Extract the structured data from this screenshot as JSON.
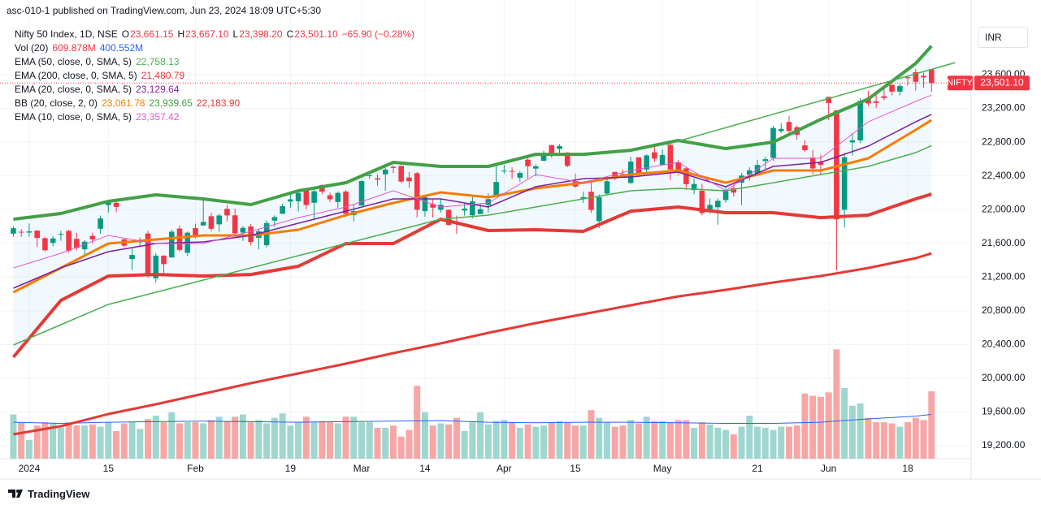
{
  "header": {
    "publisher": "asc-010-1 published on TradingView.com, Jun 23, 2024 18:09 UTC+5:30",
    "brand": "TradingView",
    "currency": "INR"
  },
  "chart_data": {
    "type": "candlestick",
    "title": "Nifty 50 Index, 1D, NSE",
    "ohlc_labels": [
      {
        "key": "O",
        "value": "23,661.15"
      },
      {
        "key": "H",
        "value": "23,667.10"
      },
      {
        "key": "L",
        "value": "23,398.20"
      },
      {
        "key": "C",
        "value": "23,501.10"
      }
    ],
    "change_label": "−65.90 (−0.28%)",
    "symbol_tag": "NIFTY",
    "last_price_label": "23,501.10",
    "up_color": "#089981",
    "down_color": "#f23645",
    "open": [
      21715,
      21737,
      21727,
      21751,
      21661,
      21605,
      21705,
      21747,
      21653,
      21529,
      21688,
      21773,
      22053,
      22080,
      21647,
      21414,
      21615,
      21716,
      21185,
      21454,
      21433,
      21775,
      21487,
      21780,
      21812,
      21921,
      21825,
      22009,
      21932,
      21727,
      21800,
      21664,
      21578,
      21869,
      21950,
      22095,
      22099,
      22248,
      22081,
      22291,
      22170,
      22090,
      22214,
      21935,
      22048,
      22403,
      22372,
      22418,
      22508,
      22517,
      22380,
      22432,
      21982,
      22065,
      21998,
      21997,
      21843,
      21989,
      21932,
      21947,
      22054,
      22164,
      22455,
      22458,
      22378,
      22592,
      22486,
      22579,
      22765,
      22720,
      22677,
      22339,
      22125,
      22212,
      21862,
      22190,
      22447,
      22421,
      22316,
      22620,
      22475,
      22679,
      22531,
      22767,
      22562,
      22489,
      22231,
      22224,
      21990,
      22028,
      22113,
      22255,
      22319,
      22415,
      22405,
      22576,
      22614,
      22930,
      23039,
      22977,
      22762,
      22617,
      22568,
      23337,
      23179,
      21998,
      22798,
      22821,
      23320,
      23284,
      23344,
      23480,
      23399,
      23570,
      23629,
      23587,
      23661.15
    ],
    "high": [
      21801,
      21770,
      21834,
      21755,
      21678,
      21685,
      21749,
      21763,
      21724,
      21641,
      21726,
      21928,
      22116,
      22124,
      21652,
      21539,
      21670,
      21750,
      21482,
      21459,
      21763,
      21813,
      21742,
      21833,
      22127,
      21965,
      21951,
      22054,
      22011,
      21805,
      21831,
      21767,
      21870,
      21931,
      22069,
      22187,
      22216,
      22249,
      22253,
      22298,
      22202,
      22218,
      22229,
      22060,
      22353,
      22440,
      22417,
      22497,
      22526,
      22526,
      22447,
      22446,
      22166,
      22122,
      22123,
      22002,
      21930,
      22081,
      22180,
      22073,
      22193,
      22516,
      22529,
      22502,
      22457,
      22620,
      22537,
      22698,
      22768,
      22775,
      22680,
      22427,
      22213,
      22326,
      22180,
      22376,
      22447,
      22476,
      22625,
      22620,
      22655,
      22783,
      22711,
      22794,
      22588,
      22499,
      22369,
      22307,
      22131,
      22131,
      22270,
      22297,
      22433,
      22502,
      22591,
      22629,
      22994,
      23027,
      23111,
      22999,
      22825,
      22706,
      22653,
      23338,
      23179,
      22670,
      22910,
      23320,
      23411,
      23389,
      23442,
      23481,
      23490,
      23579,
      23665,
      23624,
      23667.1
    ],
    "low": [
      21678,
      21676,
      21680,
      21555,
      21500,
      21564,
      21629,
      21492,
      21517,
      21448,
      21593,
      21715,
      21963,
      21969,
      21550,
      21285,
      21575,
      21192,
      21137,
      21248,
      21429,
      21501,
      21449,
      21659,
      21806,
      21742,
      21737,
      21860,
      21665,
      21629,
      21575,
      21530,
      21551,
      21794,
      21950,
      22022,
      21980,
      22004,
      21875,
      22181,
      22089,
      22023,
      21915,
      21860,
      22048,
      22362,
      22283,
      22224,
      22433,
      22315,
      22257,
      21906,
      21917,
      21906,
      21963,
      21811,
      21711,
      21929,
      21896,
      21947,
      21963,
      22164,
      22428,
      22365,
      22331,
      22369,
      22396,
      22575,
      22612,
      22673,
      22503,
      22259,
      22080,
      21961,
      21778,
      22180,
      22349,
      22384,
      22305,
      22385,
      22441,
      22568,
      22528,
      22348,
      22409,
      22232,
      22185,
      21932,
      21950,
      21821,
      22082,
      22151,
      22054,
      22345,
      22404,
      22483,
      22577,
      22907,
      22871,
      22825,
      22685,
      22418,
      22417,
      23062,
      21281,
      21791,
      22642,
      22789,
      23227,
      23207,
      23295,
      23353,
      23354,
      23473,
      23412,
      23442,
      23398.2
    ],
    "close": [
      21779,
      21731,
      21742,
      21665,
      21518,
      21658,
      21711,
      21513,
      21545,
      21619,
      21647,
      21895,
      22097,
      22032,
      21572,
      21462,
      21622,
      21239,
      21454,
      21353,
      21738,
      21522,
      21726,
      21698,
      21854,
      21772,
      21930,
      21931,
      21718,
      21783,
      21616,
      21743,
      21840,
      21911,
      22041,
      22122,
      22197,
      22055,
      22218,
      22213,
      22122,
      22198,
      21951,
      21983,
      22339,
      22406,
      22356,
      22474,
      22494,
      22333,
      22336,
      21998,
      22147,
      22023,
      22056,
      21818,
      21839,
      22012,
      22097,
      22005,
      22124,
      22327,
      22462,
      22453,
      22435,
      22515,
      22514,
      22666,
      22643,
      22754,
      22519,
      22273,
      22148,
      21996,
      22147,
      22336,
      22368,
      22402,
      22570,
      22420,
      22643,
      22605,
      22648,
      22476,
      22443,
      22302,
      22303,
      21958,
      22055,
      22104,
      22218,
      22201,
      22404,
      22466,
      22529,
      22598,
      22968,
      22957,
      22932,
      22888,
      22704,
      22488,
      22531,
      23264,
      21884,
      22620,
      22821,
      23290,
      23259,
      23265,
      23323,
      23399,
      23466,
      23558,
      23516,
      23567,
      23501.1
    ],
    "volume": {
      "name": "Vol (20)",
      "value_label": "609.878M",
      "ma_label": "400.552M",
      "ma_color": "#2962ff",
      "up_color": "#9fd6d0",
      "down_color": "#f7a6a6",
      "ylim": [
        0,
        3934
      ],
      "values": [
        400,
        330,
        170,
        300,
        330,
        320,
        280,
        330,
        300,
        300,
        310,
        290,
        330,
        250,
        320,
        330,
        270,
        360,
        390,
        330,
        420,
        320,
        330,
        330,
        320,
        350,
        380,
        340,
        380,
        400,
        330,
        350,
        320,
        370,
        410,
        300,
        330,
        380,
        330,
        340,
        330,
        320,
        380,
        380,
        330,
        330,
        280,
        280,
        300,
        200,
        260,
        660,
        420,
        300,
        320,
        310,
        370,
        250,
        330,
        420,
        310,
        340,
        350,
        330,
        280,
        310,
        290,
        300,
        330,
        340,
        330,
        300,
        300,
        440,
        370,
        330,
        290,
        300,
        350,
        320,
        380,
        340,
        340,
        330,
        350,
        350,
        280,
        330,
        310,
        280,
        260,
        220,
        290,
        390,
        290,
        280,
        260,
        290,
        290,
        300,
        590,
        570,
        560,
        600,
        990,
        640,
        480,
        500,
        370,
        330,
        330,
        320,
        290,
        330,
        370,
        350,
        609.878
      ],
      "ma": [
        330,
        320,
        330,
        335,
        340,
        335,
        330,
        335,
        340,
        345,
        330,
        325,
        330,
        330,
        325,
        320,
        320,
        330,
        360,
        385,
        400.552
      ]
    },
    "line_x": [
      0,
      6,
      12,
      18,
      24,
      30,
      36,
      42,
      48,
      54,
      60,
      66,
      72,
      78,
      84,
      90,
      96,
      102,
      108,
      114,
      116
    ],
    "indicators": [
      {
        "name": "EMA (50, close, 0, SMA, 5)",
        "value_label": "22,758.13",
        "color": "#4caf50",
        "width": 1.5,
        "values": [
          20394,
          20635,
          20875,
          21020,
          21164,
          21309,
          21453,
          21597,
          21742,
          21886,
          21934,
          22031,
          22127,
          22223,
          22252,
          22223,
          22319,
          22416,
          22512,
          22676,
          22758.13
        ]
      },
      {
        "name": "EMA (200, close, 0, SMA, 5)",
        "value_label": "21,480.79",
        "color": "#e53935",
        "width": 3,
        "values": [
          19335,
          19431,
          19576,
          19691,
          19816,
          19941,
          20057,
          20172,
          20298,
          20413,
          20538,
          20654,
          20760,
          20866,
          20971,
          21049,
          21135,
          21212,
          21308,
          21424,
          21480.79
        ]
      },
      {
        "name": "EMA (20, close, 0, SMA, 5)",
        "value_label": "23,129.64",
        "color": "#7b1fa2",
        "width": 1.5,
        "values": [
          21068,
          21309,
          21501,
          21597,
          21617,
          21694,
          21838,
          21982,
          22127,
          22127,
          22031,
          22271,
          22367,
          22387,
          22445,
          22271,
          22512,
          22560,
          22753,
          23041,
          23129.64
        ]
      },
      {
        "name": "EMA (10, close, 0, SMA, 5)",
        "value_label": "23,357.42",
        "color": "#e254d2",
        "width": 1,
        "values": [
          21309,
          21482,
          21694,
          21597,
          21597,
          21742,
          21905,
          22031,
          22223,
          22031,
          22079,
          22416,
          22319,
          22464,
          22560,
          22223,
          22608,
          22608,
          23041,
          23282,
          23357.42
        ]
      }
    ],
    "bb": {
      "name": "BB (20, close, 2, 0)",
      "fill": "#2196f3",
      "bands": [
        {
          "value_label": "23,061.78",
          "color": "#f57c00",
          "width": 3,
          "values": [
            21020,
            21309,
            21597,
            21646,
            21694,
            21694,
            21761,
            21934,
            22079,
            22204,
            22146,
            22252,
            22319,
            22416,
            22464,
            22319,
            22464,
            22464,
            22608,
            22945,
            23061.78
          ]
        },
        {
          "value_label": "23,939.65",
          "color": "#43a047",
          "width": 4,
          "values": [
            21886,
            21954,
            22098,
            22175,
            22127,
            22060,
            22223,
            22319,
            22560,
            22512,
            22512,
            22656,
            22656,
            22704,
            22820,
            22724,
            22801,
            23070,
            23311,
            23734,
            23939.65
          ]
        },
        {
          "value_label": "22,183.90",
          "color": "#e53935",
          "width": 4,
          "values": [
            20250,
            20923,
            21212,
            21231,
            21212,
            21231,
            21328,
            21597,
            21597,
            21886,
            21751,
            21761,
            21742,
            21982,
            22031,
            21963,
            21963,
            21905,
            21934,
            22127,
            22183.9
          ]
        }
      ]
    },
    "trendline": {
      "x": [
        82.5,
        119
      ],
      "values": [
        22772,
        23744
      ],
      "color": "#4caf50"
    },
    "xlim": [
      -1.69,
      121
    ],
    "ylim": [
      19046,
      24197
    ],
    "grid": true,
    "yticks": [
      {
        "value": 19200,
        "label": "19,200.00"
      },
      {
        "value": 19600,
        "label": "19,600.00"
      },
      {
        "value": 20000,
        "label": "20,000.00"
      },
      {
        "value": 20400,
        "label": "20,400.00"
      },
      {
        "value": 20800,
        "label": "20,800.00"
      },
      {
        "value": 21200,
        "label": "21,200.00"
      },
      {
        "value": 21600,
        "label": "21,600.00"
      },
      {
        "value": 22000,
        "label": "22,000.00"
      },
      {
        "value": 22400,
        "label": "22,400.00"
      },
      {
        "value": 22800,
        "label": "22,800.00"
      },
      {
        "value": 23200,
        "label": "23,200.00"
      },
      {
        "value": 23600,
        "label": "23,600.00"
      }
    ],
    "xticks": [
      {
        "value": 2,
        "label": "2024"
      },
      {
        "value": 12,
        "label": "15"
      },
      {
        "value": 23,
        "label": "Feb"
      },
      {
        "value": 35,
        "label": "19"
      },
      {
        "value": 44,
        "label": "Mar"
      },
      {
        "value": 52,
        "label": "14"
      },
      {
        "value": 62,
        "label": "Apr"
      },
      {
        "value": 71,
        "label": "15"
      },
      {
        "value": 82,
        "label": "May"
      },
      {
        "value": 94,
        "label": "21"
      },
      {
        "value": 103,
        "label": "Jun"
      },
      {
        "value": 113,
        "label": "18"
      }
    ]
  }
}
